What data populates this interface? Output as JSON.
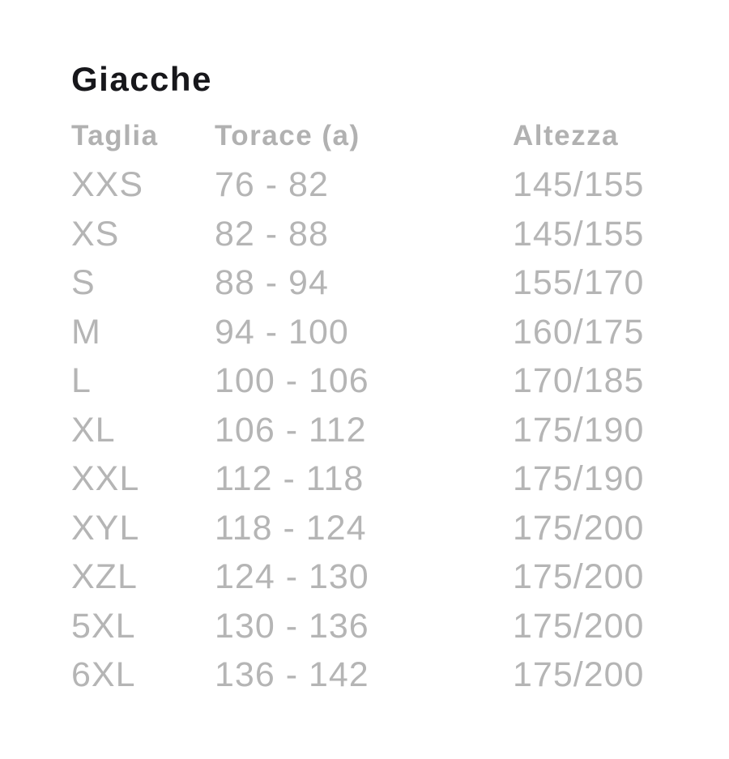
{
  "title": "Giacche",
  "colors": {
    "title_text": "#17171b",
    "header_text": "#b1b1b1",
    "row_text": "#b5b5b5",
    "background": "#ffffff"
  },
  "table": {
    "columns": [
      {
        "key": "taglia",
        "label": "Taglia"
      },
      {
        "key": "torace",
        "label": "Torace (a)"
      },
      {
        "key": "altezza",
        "label": "Altezza"
      }
    ],
    "rows": [
      {
        "taglia": "XXS",
        "torace": "76 - 82",
        "altezza": "145/155"
      },
      {
        "taglia": "XS",
        "torace": "82 - 88",
        "altezza": "145/155"
      },
      {
        "taglia": "S",
        "torace": "88 - 94",
        "altezza": "155/170"
      },
      {
        "taglia": "M",
        "torace": "94 - 100",
        "altezza": "160/175"
      },
      {
        "taglia": "L",
        "torace": "100 - 106",
        "altezza": "170/185"
      },
      {
        "taglia": "XL",
        "torace": "106 - 112",
        "altezza": "175/190"
      },
      {
        "taglia": "XXL",
        "torace": "112 - 118",
        "altezza": "175/190"
      },
      {
        "taglia": "XYL",
        "torace": "118 - 124",
        "altezza": "175/200"
      },
      {
        "taglia": "XZL",
        "torace": "124 - 130",
        "altezza": "175/200"
      },
      {
        "taglia": "5XL",
        "torace": "130 - 136",
        "altezza": "175/200"
      },
      {
        "taglia": "6XL",
        "torace": "136 - 142",
        "altezza": "175/200"
      }
    ]
  }
}
